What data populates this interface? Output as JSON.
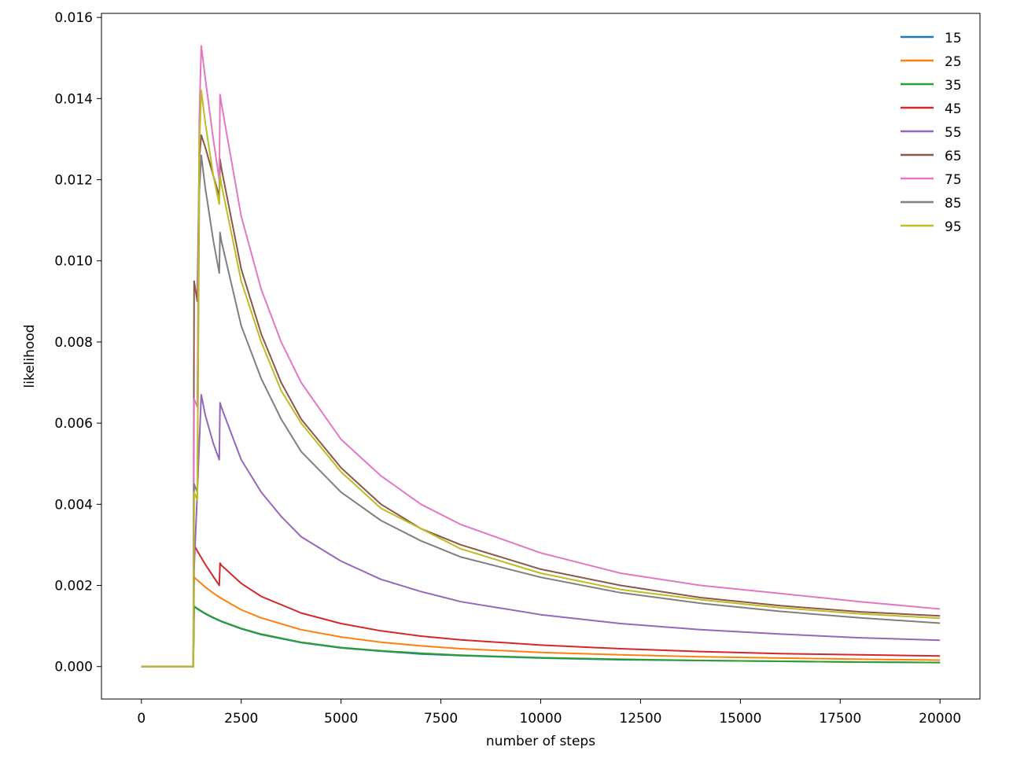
{
  "chart_data": {
    "type": "line",
    "xlabel": "number of steps",
    "ylabel": "likelihood",
    "xlim": [
      -1000,
      21000
    ],
    "ylim": [
      -0.0008,
      0.0161
    ],
    "xticks": [
      0,
      2500,
      5000,
      7500,
      10000,
      12500,
      15000,
      17500,
      20000
    ],
    "xtick_labels": [
      "0",
      "2500",
      "5000",
      "7500",
      "10000",
      "12500",
      "15000",
      "17500",
      "20000"
    ],
    "yticks": [
      0.0,
      0.002,
      0.004,
      0.006,
      0.008,
      0.01,
      0.012,
      0.014,
      0.016
    ],
    "ytick_labels": [
      "0.000",
      "0.002",
      "0.004",
      "0.006",
      "0.008",
      "0.010",
      "0.012",
      "0.014",
      "0.016"
    ],
    "grid": false,
    "legend_position": "top-right",
    "series": [
      {
        "name": "15",
        "color": "#1f77b4",
        "x": [
          0,
          1300,
          1320,
          1400,
          1600,
          1800,
          2000,
          2500,
          3000,
          4000,
          5000,
          6000,
          7000,
          8000,
          10000,
          12000,
          14000,
          16000,
          18000,
          20000
        ],
        "y": [
          0,
          0,
          0.00148,
          0.00142,
          0.0013,
          0.0012,
          0.00111,
          0.00093,
          0.00079,
          0.00059,
          0.00046,
          0.00038,
          0.00031,
          0.00027,
          0.00021,
          0.00017,
          0.00015,
          0.00013,
          0.00011,
          0.0001
        ]
      },
      {
        "name": "25",
        "color": "#ff7f0e",
        "x": [
          0,
          1300,
          1320,
          1400,
          1600,
          1800,
          2000,
          2500,
          3000,
          4000,
          5000,
          6000,
          7000,
          8000,
          10000,
          12000,
          14000,
          16000,
          18000,
          20000
        ],
        "y": [
          0,
          0,
          0.0022,
          0.00213,
          0.00196,
          0.00181,
          0.00168,
          0.0014,
          0.0012,
          0.00091,
          0.00073,
          0.0006,
          0.00051,
          0.00044,
          0.00035,
          0.00029,
          0.00024,
          0.00021,
          0.00018,
          0.00016
        ]
      },
      {
        "name": "35",
        "color": "#2ca02c",
        "x": [
          0,
          1300,
          1320,
          1400,
          1600,
          1800,
          2000,
          2500,
          3000,
          4000,
          5000,
          6000,
          7000,
          8000,
          10000,
          12000,
          14000,
          16000,
          18000,
          20000
        ],
        "y": [
          0,
          0,
          0.00149,
          0.00143,
          0.00131,
          0.00121,
          0.00112,
          0.00094,
          0.0008,
          0.0006,
          0.00047,
          0.00039,
          0.00033,
          0.00028,
          0.00022,
          0.00018,
          0.00015,
          0.00013,
          0.00011,
          0.0001
        ]
      },
      {
        "name": "45",
        "color": "#d62728",
        "x": [
          0,
          1300,
          1320,
          1400,
          1600,
          1800,
          1950,
          1970,
          2000,
          2500,
          3000,
          4000,
          5000,
          6000,
          7000,
          8000,
          10000,
          12000,
          14000,
          16000,
          18000,
          20000
        ],
        "y": [
          0,
          0,
          0.003,
          0.00285,
          0.00252,
          0.00222,
          0.002,
          0.00255,
          0.0025,
          0.00205,
          0.00173,
          0.00132,
          0.00106,
          0.00088,
          0.00075,
          0.00066,
          0.00053,
          0.00044,
          0.00037,
          0.00032,
          0.00029,
          0.00026
        ]
      },
      {
        "name": "55",
        "color": "#9467bd",
        "x": [
          0,
          1300,
          1320,
          1400,
          1500,
          1600,
          1800,
          1950,
          1970,
          2000,
          2500,
          3000,
          3500,
          4000,
          5000,
          6000,
          7000,
          8000,
          10000,
          12000,
          14000,
          16000,
          18000,
          20000
        ],
        "y": [
          0,
          0,
          0.0024,
          0.0043,
          0.0067,
          0.0062,
          0.0055,
          0.0051,
          0.0065,
          0.0064,
          0.0051,
          0.0043,
          0.0037,
          0.0032,
          0.0026,
          0.00215,
          0.00185,
          0.0016,
          0.00128,
          0.00106,
          0.00091,
          0.0008,
          0.00071,
          0.00065
        ]
      },
      {
        "name": "65",
        "color": "#8c564b",
        "x": [
          0,
          1300,
          1320,
          1400,
          1450,
          1500,
          1600,
          1800,
          1950,
          1970,
          2000,
          2500,
          3000,
          3500,
          4000,
          5000,
          6000,
          7000,
          8000,
          10000,
          12000,
          14000,
          16000,
          18000,
          20000
        ],
        "y": [
          0,
          0,
          0.0095,
          0.009,
          0.0125,
          0.0131,
          0.0128,
          0.0121,
          0.0116,
          0.0125,
          0.0123,
          0.0098,
          0.0082,
          0.007,
          0.0061,
          0.0049,
          0.004,
          0.0034,
          0.003,
          0.0024,
          0.002,
          0.0017,
          0.0015,
          0.00135,
          0.00125
        ]
      },
      {
        "name": "75",
        "color": "#e377c2",
        "x": [
          0,
          1300,
          1320,
          1400,
          1450,
          1500,
          1600,
          1800,
          1950,
          1970,
          2000,
          2500,
          3000,
          3500,
          4000,
          5000,
          6000,
          7000,
          8000,
          10000,
          12000,
          14000,
          16000,
          18000,
          20000
        ],
        "y": [
          0,
          0,
          0.0066,
          0.0064,
          0.0135,
          0.0153,
          0.0145,
          0.013,
          0.012,
          0.0141,
          0.0139,
          0.0111,
          0.0093,
          0.008,
          0.007,
          0.0056,
          0.0047,
          0.004,
          0.0035,
          0.0028,
          0.0023,
          0.002,
          0.0018,
          0.0016,
          0.00142
        ]
      },
      {
        "name": "85",
        "color": "#7f7f7f",
        "x": [
          0,
          1300,
          1320,
          1400,
          1450,
          1500,
          1600,
          1800,
          1950,
          1970,
          2000,
          2500,
          3000,
          3500,
          4000,
          5000,
          6000,
          7000,
          8000,
          10000,
          12000,
          14000,
          16000,
          18000,
          20000
        ],
        "y": [
          0,
          0,
          0.0045,
          0.0043,
          0.0117,
          0.0126,
          0.0118,
          0.0105,
          0.0097,
          0.0107,
          0.0105,
          0.0084,
          0.0071,
          0.0061,
          0.0053,
          0.0043,
          0.0036,
          0.0031,
          0.0027,
          0.0022,
          0.00182,
          0.00156,
          0.00136,
          0.0012,
          0.00107
        ]
      },
      {
        "name": "95",
        "color": "#bcbd22",
        "x": [
          0,
          1300,
          1320,
          1400,
          1450,
          1500,
          1600,
          1800,
          1950,
          1970,
          2000,
          2500,
          3000,
          3500,
          4000,
          5000,
          6000,
          7000,
          8000,
          10000,
          12000,
          14000,
          16000,
          18000,
          20000
        ],
        "y": [
          0,
          0,
          0.0043,
          0.0041,
          0.0128,
          0.0142,
          0.0134,
          0.0121,
          0.0114,
          0.0121,
          0.0119,
          0.0095,
          0.008,
          0.0068,
          0.006,
          0.0048,
          0.0039,
          0.0034,
          0.0029,
          0.0023,
          0.0019,
          0.00165,
          0.00145,
          0.0013,
          0.00119
        ]
      }
    ]
  }
}
